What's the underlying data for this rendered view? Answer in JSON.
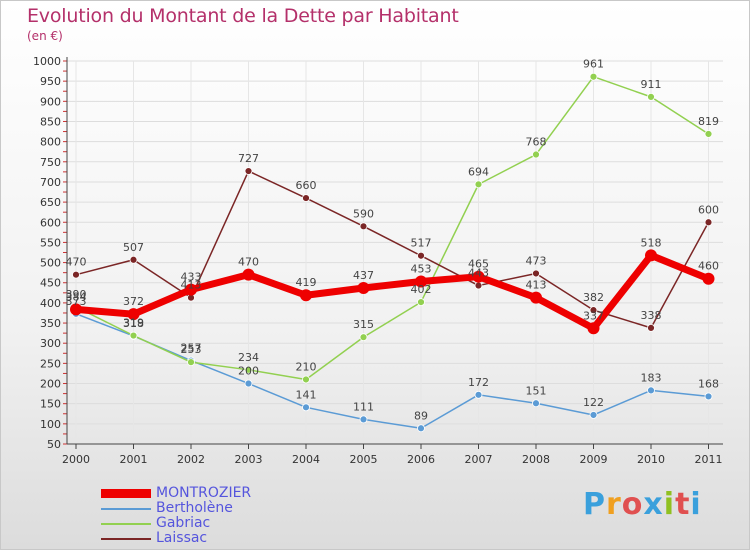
{
  "header": {
    "title": "Evolution du Montant de la Dette par Habitant",
    "subtitle": "(en €)"
  },
  "logo": {
    "letters": [
      "P",
      "r",
      "o",
      "x",
      "i",
      "t",
      "i"
    ],
    "colors": [
      "#3aa0dc",
      "#f0a020",
      "#e05050",
      "#3aa0dc",
      "#90c020",
      "#e05050",
      "#3aa0dc"
    ]
  },
  "colors": {
    "title": "#b4306a",
    "legend_text": "#5555dd",
    "axis": "#444444",
    "grid": "#dddddd"
  },
  "chart_data": {
    "type": "line",
    "title": "Evolution du Montant de la Dette par Habitant",
    "subtitle": "(en €)",
    "xlabel": "",
    "ylabel": "",
    "x": [
      "2000",
      "2001",
      "2002",
      "2003",
      "2004",
      "2005",
      "2006",
      "2007",
      "2008",
      "2009",
      "2010",
      "2011"
    ],
    "ylim": [
      50,
      1000
    ],
    "yticks": [
      50,
      100,
      150,
      200,
      250,
      300,
      350,
      400,
      450,
      500,
      550,
      600,
      650,
      700,
      750,
      800,
      850,
      900,
      950,
      1000
    ],
    "grid": true,
    "legend_position": "bottom-left",
    "series": [
      {
        "name": "MONTROZIER",
        "color": "#ee0000",
        "width": 7,
        "values": [
          384,
          372,
          433,
          470,
          419,
          437,
          453,
          465,
          413,
          337,
          518,
          460
        ]
      },
      {
        "name": "Bertholène",
        "color": "#5b9bd5",
        "width": 1.5,
        "values": [
          373,
          318,
          257,
          200,
          141,
          111,
          89,
          172,
          151,
          122,
          183,
          168
        ]
      },
      {
        "name": "Gabriac",
        "color": "#92d050",
        "width": 1.5,
        "values": [
          390,
          319,
          253,
          234,
          210,
          315,
          402,
          694,
          768,
          961,
          911,
          819
        ]
      },
      {
        "name": "Laissac",
        "color": "#7b2626",
        "width": 1.5,
        "values": [
          470,
          507,
          413,
          727,
          660,
          590,
          517,
          443,
          473,
          382,
          338,
          600
        ]
      }
    ]
  }
}
